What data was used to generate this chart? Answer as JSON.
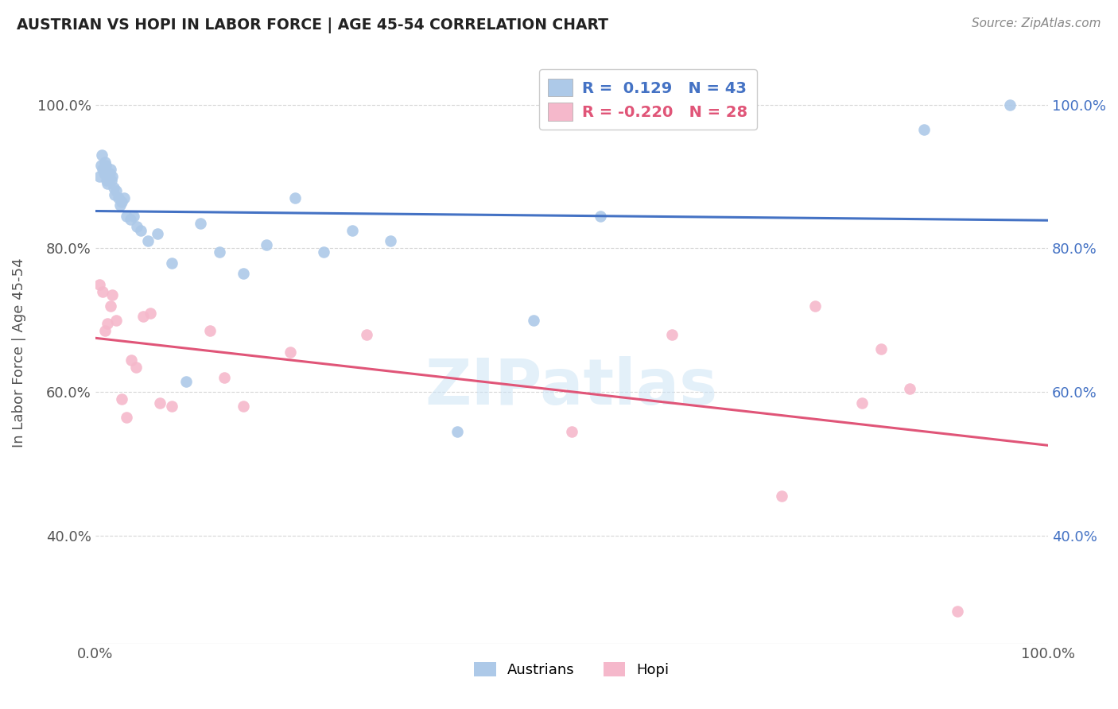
{
  "title": "AUSTRIAN VS HOPI IN LABOR FORCE | AGE 45-54 CORRELATION CHART",
  "source": "Source: ZipAtlas.com",
  "ylabel": "In Labor Force | Age 45-54",
  "xlim": [
    0.0,
    1.0
  ],
  "ylim": [
    0.25,
    1.06
  ],
  "ytick_positions": [
    0.4,
    0.6,
    0.8,
    1.0
  ],
  "ytick_labels": [
    "40.0%",
    "60.0%",
    "80.0%",
    "100.0%"
  ],
  "austrian_color": "#adc9e8",
  "hopi_color": "#f5b8cb",
  "austrian_line_color": "#4472c4",
  "hopi_line_color": "#e05578",
  "austrian_x": [
    0.004,
    0.006,
    0.007,
    0.008,
    0.009,
    0.01,
    0.011,
    0.012,
    0.013,
    0.014,
    0.015,
    0.016,
    0.017,
    0.018,
    0.019,
    0.02,
    0.022,
    0.024,
    0.026,
    0.028,
    0.03,
    0.033,
    0.037,
    0.04,
    0.044,
    0.048,
    0.055,
    0.065,
    0.08,
    0.095,
    0.11,
    0.13,
    0.155,
    0.18,
    0.21,
    0.24,
    0.27,
    0.31,
    0.38,
    0.46,
    0.53,
    0.87,
    0.96
  ],
  "austrian_y": [
    0.9,
    0.915,
    0.93,
    0.91,
    0.905,
    0.92,
    0.915,
    0.895,
    0.89,
    0.9,
    0.905,
    0.91,
    0.895,
    0.9,
    0.885,
    0.875,
    0.88,
    0.87,
    0.86,
    0.865,
    0.87,
    0.845,
    0.84,
    0.845,
    0.83,
    0.825,
    0.81,
    0.82,
    0.78,
    0.615,
    0.835,
    0.795,
    0.765,
    0.805,
    0.87,
    0.795,
    0.825,
    0.81,
    0.545,
    0.7,
    0.845,
    0.965,
    1.0
  ],
  "hopi_x": [
    0.004,
    0.008,
    0.01,
    0.013,
    0.016,
    0.018,
    0.022,
    0.028,
    0.033,
    0.038,
    0.043,
    0.05,
    0.058,
    0.068,
    0.08,
    0.12,
    0.135,
    0.155,
    0.205,
    0.285,
    0.5,
    0.605,
    0.72,
    0.755,
    0.805,
    0.825,
    0.855,
    0.905
  ],
  "hopi_y": [
    0.75,
    0.74,
    0.685,
    0.695,
    0.72,
    0.735,
    0.7,
    0.59,
    0.565,
    0.645,
    0.635,
    0.705,
    0.71,
    0.585,
    0.58,
    0.685,
    0.62,
    0.58,
    0.655,
    0.68,
    0.545,
    0.68,
    0.455,
    0.72,
    0.585,
    0.66,
    0.605,
    0.295
  ],
  "watermark": "ZIPatlas",
  "background_color": "#ffffff",
  "grid_color": "#cccccc"
}
